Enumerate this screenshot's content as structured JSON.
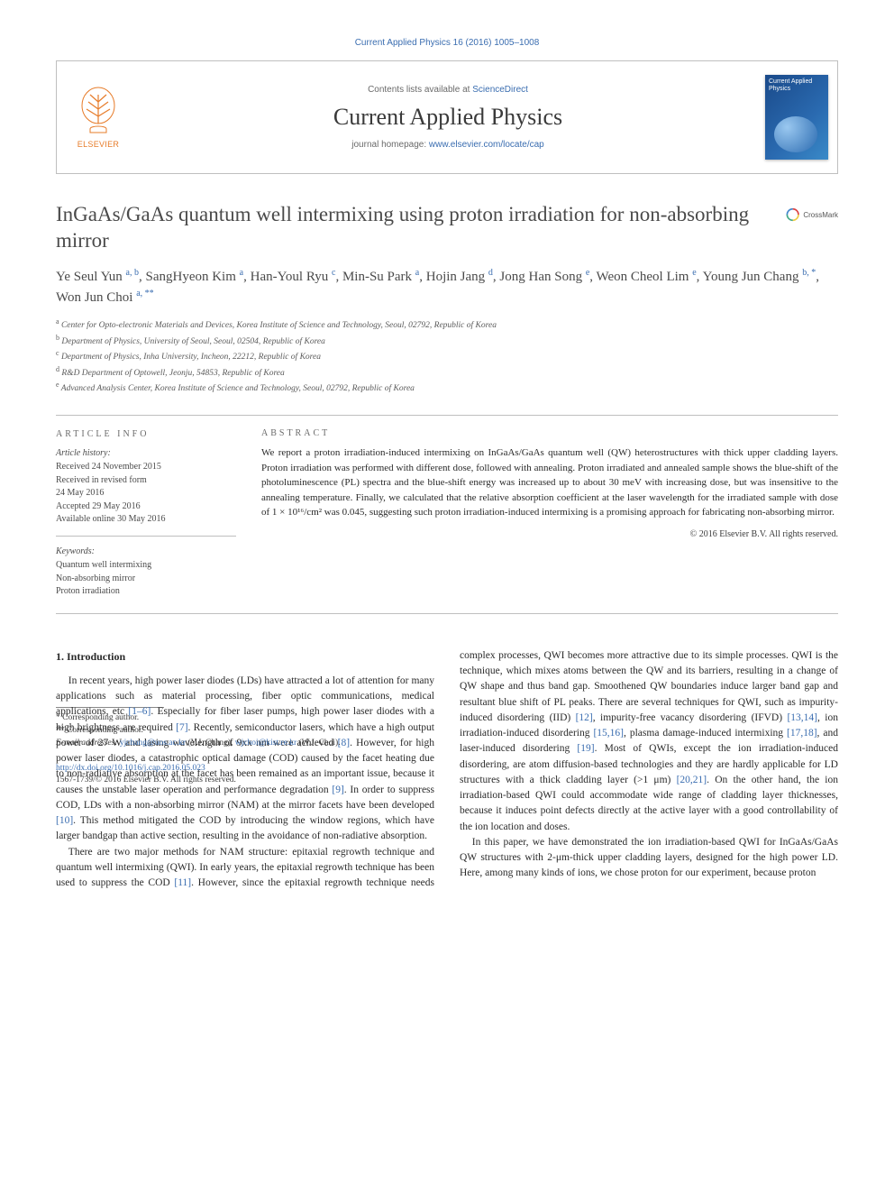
{
  "citation": "Current Applied Physics 16 (2016) 1005–1008",
  "masthead": {
    "publisher_label": "ELSEVIER",
    "available_prefix": "Contents lists available at ",
    "available_link": "ScienceDirect",
    "journal_name": "Current Applied Physics",
    "homepage_prefix": "journal homepage: ",
    "homepage_url": "www.elsevier.com/locate/cap",
    "crossmark_label": "CrossMark"
  },
  "colors": {
    "link": "#3a6db0",
    "publisher_orange": "#e77c2a",
    "rule": "#bfbfbf",
    "body_text": "#2a2a2a"
  },
  "title": "InGaAs/GaAs quantum well intermixing using proton irradiation for non-absorbing mirror",
  "authors_html": "Ye Seul Yun <sup>a, b</sup>, SangHyeon Kim <sup>a</sup>, Han-Youl Ryu <sup>c</sup>, Min-Su Park <sup>a</sup>, Hojin Jang <sup>d</sup>, Jong Han Song <sup>e</sup>, Weon Cheol Lim <sup>e</sup>, Young Jun Chang <sup>b, *</sup>, Won Jun Choi <sup>a, **</sup>",
  "affiliations": [
    {
      "sup": "a",
      "text": "Center for Opto-electronic Materials and Devices, Korea Institute of Science and Technology, Seoul, 02792, Republic of Korea"
    },
    {
      "sup": "b",
      "text": "Department of Physics, University of Seoul, Seoul, 02504, Republic of Korea"
    },
    {
      "sup": "c",
      "text": "Department of Physics, Inha University, Incheon, 22212, Republic of Korea"
    },
    {
      "sup": "d",
      "text": "R&D Department of Optowell, Jeonju, 54853, Republic of Korea"
    },
    {
      "sup": "e",
      "text": "Advanced Analysis Center, Korea Institute of Science and Technology, Seoul, 02792, Republic of Korea"
    }
  ],
  "article_info": {
    "heading": "ARTICLE INFO",
    "history_head": "Article history:",
    "history": [
      "Received 24 November 2015",
      "Received in revised form",
      "24 May 2016",
      "Accepted 29 May 2016",
      "Available online 30 May 2016"
    ],
    "keywords_head": "Keywords:",
    "keywords": [
      "Quantum well intermixing",
      "Non-absorbing mirror",
      "Proton irradiation"
    ]
  },
  "abstract": {
    "heading": "ABSTRACT",
    "text": "We report a proton irradiation-induced intermixing on InGaAs/GaAs quantum well (QW) heterostructures with thick upper cladding layers. Proton irradiation was performed with different dose, followed with annealing. Proton irradiated and annealed sample shows the blue-shift of the photoluminescence (PL) spectra and the blue-shift energy was increased up to about 30 meV with increasing dose, but was insensitive to the annealing temperature. Finally, we calculated that the relative absorption coefficient at the laser wavelength for the irradiated sample with dose of 1 × 10¹⁶/cm² was 0.045, suggesting such proton irradiation-induced intermixing is a promising approach for fabricating non-absorbing mirror.",
    "copyright": "© 2016 Elsevier B.V. All rights reserved."
  },
  "body": {
    "section_heading": "1. Introduction",
    "para1_segments": [
      {
        "t": "In recent years, high power laser diodes (LDs) have attracted a lot of attention for many applications such as material processing, fiber optic communications, medical applications, etc "
      },
      {
        "t": "[1–6]",
        "ref": true
      },
      {
        "t": ". Especially for fiber laser pumps, high power laser diodes with a high brightness are required "
      },
      {
        "t": "[7]",
        "ref": true
      },
      {
        "t": ". Recently, semiconductor lasers, which have a high output power of 27 W and lasing wavelength of 9xx nm were achieved "
      },
      {
        "t": "[8]",
        "ref": true
      },
      {
        "t": ". However, for high power laser diodes, a catastrophic optical damage (COD) caused by the facet heating due to non-radiative absorption at the facet has been remained as an important issue, because it causes the unstable laser operation and performance degradation "
      },
      {
        "t": "[9]",
        "ref": true
      },
      {
        "t": ". In order to suppress COD, LDs with a non-absorbing mirror (NAM) at the mirror facets have been developed "
      },
      {
        "t": "[10]",
        "ref": true
      },
      {
        "t": ". This method mitigated the COD by introducing the window regions, which have larger bandgap than active section, resulting in the avoidance of non-radiative absorption."
      }
    ],
    "para2_segments": [
      {
        "t": "There are two major methods for NAM structure: epitaxial regrowth technique and quantum well intermixing (QWI). In early years, the epitaxial regrowth technique has been used to suppress the COD "
      },
      {
        "t": "[11]",
        "ref": true
      },
      {
        "t": ". However, since the epitaxial regrowth technique needs complex processes, QWI becomes more attractive due to its simple processes. QWI is the technique, which mixes atoms between the QW and its barriers, resulting in a change of QW shape and thus band gap. Smoothened QW boundaries induce larger band gap and resultant blue shift of PL peaks. There are several techniques for QWI, such as impurity-induced disordering (IID) "
      },
      {
        "t": "[12]",
        "ref": true
      },
      {
        "t": ", impurity-free vacancy disordering (IFVD) "
      },
      {
        "t": "[13,14]",
        "ref": true
      },
      {
        "t": ", ion irradiation-induced disordering "
      },
      {
        "t": "[15,16]",
        "ref": true
      },
      {
        "t": ", plasma damage-induced intermixing "
      },
      {
        "t": "[17,18]",
        "ref": true
      },
      {
        "t": ", and laser-induced disordering "
      },
      {
        "t": "[19]",
        "ref": true
      },
      {
        "t": ". Most of QWIs, except the ion irradiation-induced disordering, are atom diffusion-based technologies and they are hardly applicable for LD structures with a thick cladding layer (>1 μm) "
      },
      {
        "t": "[20,21]",
        "ref": true
      },
      {
        "t": ". On the other hand, the ion irradiation-based QWI could accommodate wide range of cladding layer thicknesses, because it induces point defects directly at the active layer with a good controllability of the ion location and doses."
      }
    ],
    "para3": "In this paper, we have demonstrated the ion irradiation-based QWI for InGaAs/GaAs QW structures with 2-μm-thick upper cladding layers, designed for the high power LD. Here, among many kinds of ions, we chose proton for our experiment, because proton"
  },
  "corresponding": {
    "star1": "* Corresponding author.",
    "star2": "** Corresponding author.",
    "emails_label": "E-mail addresses:",
    "email1": "yjchang@uos.ac.kr",
    "name1": "(Y.J. Chang),",
    "email2": "wjchoi@kist.re.kr",
    "name2": "(W.J. Choi)."
  },
  "footer": {
    "doi": "http://dx.doi.org/10.1016/j.cap.2016.05.023",
    "issn_line": "1567-1739/© 2016 Elsevier B.V. All rights reserved."
  }
}
